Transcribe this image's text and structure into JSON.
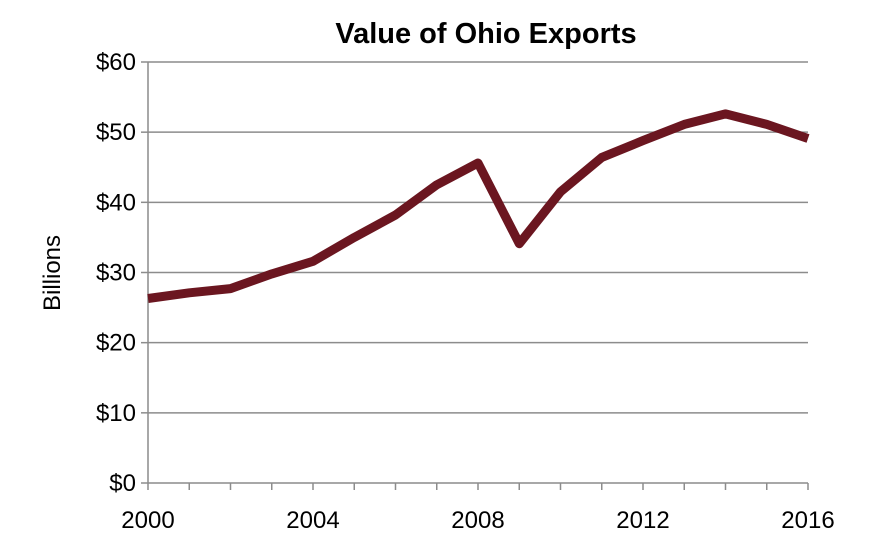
{
  "chart_data": {
    "type": "line",
    "title": "Value of Ohio Exports",
    "xlabel": "",
    "ylabel": "Billions",
    "x": [
      2000,
      2001,
      2002,
      2003,
      2004,
      2005,
      2006,
      2007,
      2008,
      2009,
      2010,
      2011,
      2012,
      2013,
      2014,
      2015,
      2016
    ],
    "series": [
      {
        "values": [
          26.3,
          27.1,
          27.7,
          29.8,
          31.6,
          35.0,
          38.2,
          42.5,
          45.6,
          34.1,
          41.5,
          46.4,
          48.8,
          51.1,
          52.6,
          51.1,
          49.1
        ]
      }
    ],
    "ylim": [
      0,
      60
    ],
    "xlim": [
      2000,
      2016
    ],
    "y_ticks": [
      {
        "value": 0,
        "label": "$0"
      },
      {
        "value": 10,
        "label": "$10"
      },
      {
        "value": 20,
        "label": "$20"
      },
      {
        "value": 30,
        "label": "$30"
      },
      {
        "value": 40,
        "label": "$40"
      },
      {
        "value": 50,
        "label": "$50"
      },
      {
        "value": 60,
        "label": "$60"
      }
    ],
    "x_ticks": [
      {
        "value": 2000,
        "label": "2000"
      },
      {
        "value": 2004,
        "label": "2004"
      },
      {
        "value": 2008,
        "label": "2008"
      },
      {
        "value": 2012,
        "label": "2012"
      },
      {
        "value": 2016,
        "label": "2016"
      }
    ],
    "x_minor_ticks": [
      2000,
      2001,
      2002,
      2003,
      2004,
      2005,
      2006,
      2007,
      2008,
      2009,
      2010,
      2011,
      2012,
      2013,
      2014,
      2015,
      2016
    ],
    "grid": true,
    "legend": "none",
    "colors": {
      "line": "#6b1620",
      "grid": "#8c8c8c",
      "axis": "#8c8c8c"
    }
  }
}
